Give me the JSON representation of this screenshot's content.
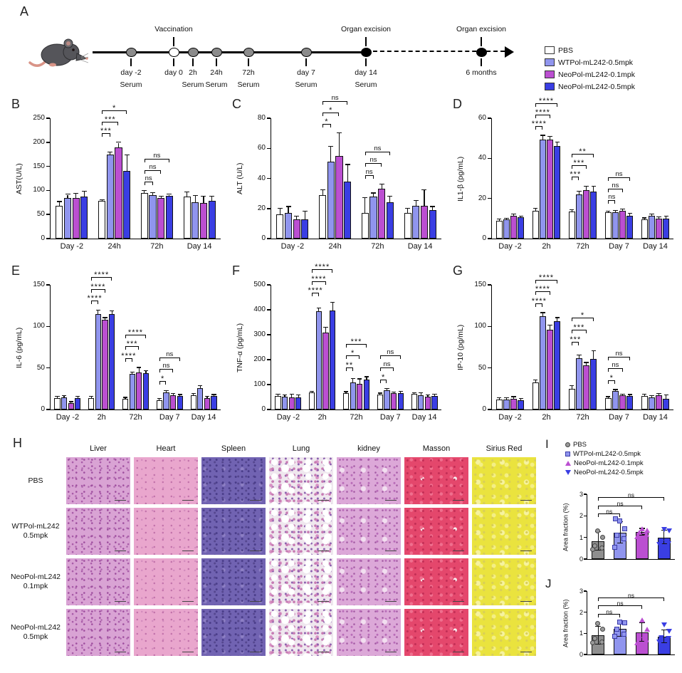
{
  "panels": {
    "A": "A",
    "B": "B",
    "C": "C",
    "D": "D",
    "E": "E",
    "F": "F",
    "G": "G",
    "H": "H",
    "I": "I",
    "J": "J"
  },
  "group_colors": [
    "#ffffff",
    "#9095ee",
    "#bb4fd1",
    "#3a3ee3"
  ],
  "legend_main": {
    "items": [
      {
        "label": "PBS",
        "color": "#ffffff"
      },
      {
        "label": "WTPol-mL242-0.5mpk",
        "color": "#9095ee"
      },
      {
        "label": "NeoPol-mL242-0.1mpk",
        "color": "#bb4fd1"
      },
      {
        "label": "NeoPol-mL242-0.5mpk",
        "color": "#3a3ee3"
      }
    ]
  },
  "timeline": {
    "solid_end_pct": 64,
    "dashed_end_pct": 96.5,
    "points": [
      {
        "pct": 9,
        "type": "gray",
        "above": "",
        "below1": "day -2",
        "below2": "Serum"
      },
      {
        "pct": 19,
        "type": "white",
        "above": "Vaccination",
        "below1": "day 0",
        "below2": ""
      },
      {
        "pct": 23.5,
        "type": "gray",
        "above": "",
        "below1": "2h",
        "below2": "Serum"
      },
      {
        "pct": 29,
        "type": "gray",
        "above": "",
        "below1": "24h",
        "below2": "Serum"
      },
      {
        "pct": 36.5,
        "type": "gray",
        "above": "",
        "below1": "72h",
        "below2": "Serum"
      },
      {
        "pct": 50,
        "type": "gray",
        "above": "",
        "below1": "day 7",
        "below2": "Serum"
      },
      {
        "pct": 64,
        "type": "black",
        "above": "Organ excision",
        "below1": "day 14",
        "below2": "Serum"
      },
      {
        "pct": 91,
        "type": "black",
        "above": "Organ excision",
        "below1": "6 months",
        "below2": ""
      }
    ]
  },
  "chart_data": [
    {
      "kind": "grouped",
      "type": "bar",
      "panel": "B",
      "ylabel": "AST(U/L)",
      "ymax": 250,
      "yticks": [
        0,
        50,
        100,
        150,
        200,
        250
      ],
      "categories": [
        "Day -2",
        "24h",
        "72h",
        "Day 14"
      ],
      "series": [
        {
          "name": "PBS",
          "values": [
            68,
            78,
            95,
            87
          ],
          "errors": [
            8,
            2,
            4,
            9
          ]
        },
        {
          "name": "WTPol-mL242-0.5mpk",
          "values": [
            84,
            174,
            90,
            75
          ],
          "errors": [
            7,
            5,
            5,
            14
          ]
        },
        {
          "name": "NeoPol-mL242-0.1mpk",
          "values": [
            85,
            189,
            85,
            74
          ],
          "errors": [
            8,
            10,
            2,
            13
          ]
        },
        {
          "name": "NeoPol-mL242-0.5mpk",
          "values": [
            88,
            141,
            89,
            79
          ],
          "errors": [
            10,
            32,
            2,
            8
          ]
        }
      ],
      "brackets": {
        "1": [
          "***",
          "***",
          "*"
        ],
        "2": [
          "ns",
          "ns",
          "ns"
        ]
      }
    },
    {
      "kind": "grouped",
      "type": "bar",
      "panel": "C",
      "ylabel": "ALT (U/L)",
      "ymax": 80,
      "yticks": [
        0,
        20,
        40,
        60,
        80
      ],
      "categories": [
        "Day -2",
        "24h",
        "72h",
        "Day 14"
      ],
      "series": [
        {
          "name": "PBS",
          "values": [
            16,
            29,
            17,
            17
          ],
          "errors": [
            4,
            3,
            10,
            3
          ]
        },
        {
          "name": "WTPol-mL242-0.5mpk",
          "values": [
            17,
            51,
            28,
            22
          ],
          "errors": [
            4,
            10,
            2,
            3
          ]
        },
        {
          "name": "NeoPol-mL242-0.1mpk",
          "values": [
            13,
            55,
            33,
            22
          ],
          "errors": [
            1.5,
            15,
            3,
            10
          ]
        },
        {
          "name": "NeoPol-mL242-0.5mpk",
          "values": [
            13,
            38,
            24,
            19
          ],
          "errors": [
            5,
            11,
            4,
            2
          ]
        }
      ],
      "brackets": {
        "1": [
          "*",
          "*",
          "ns"
        ],
        "2": [
          "ns",
          "ns",
          "ns"
        ]
      }
    },
    {
      "kind": "grouped",
      "type": "bar",
      "panel": "D",
      "ylabel": "IL1-β (pg/mL)",
      "ymax": 60,
      "yticks": [
        0,
        20,
        40,
        60
      ],
      "categories": [
        "Day -2",
        "2h",
        "72h",
        "Day 7",
        "Day 14"
      ],
      "series": [
        {
          "name": "PBS",
          "values": [
            9,
            14,
            13.5,
            13,
            9.5
          ],
          "errors": [
            0.5,
            0.8,
            0.8,
            0.6,
            0.6
          ]
        },
        {
          "name": "WTPol-mL242-0.5mpk",
          "values": [
            9.5,
            49.5,
            22,
            13,
            11.5
          ],
          "errors": [
            0.5,
            1.8,
            1.5,
            0.8,
            0.6
          ]
        },
        {
          "name": "NeoPol-mL242-0.1mpk",
          "values": [
            11.5,
            49.5,
            24,
            14,
            10
          ],
          "errors": [
            0.5,
            1.2,
            1.8,
            0.5,
            0.5
          ]
        },
        {
          "name": "NeoPol-mL242-0.5mpk",
          "values": [
            10.5,
            46,
            23.5,
            11.5,
            10
          ],
          "errors": [
            0.5,
            1.8,
            2.5,
            0.8,
            1
          ]
        }
      ],
      "brackets": {
        "1": [
          "****",
          "****",
          "****"
        ],
        "2": [
          "***",
          "***",
          "**"
        ],
        "3": [
          "ns",
          "ns",
          "ns"
        ]
      }
    },
    {
      "kind": "grouped",
      "type": "bar",
      "panel": "E",
      "ylabel": "IL-6 (pg/mL)",
      "ymax": 150,
      "yticks": [
        0,
        50,
        100,
        150
      ],
      "categories": [
        "Day -2",
        "2h",
        "72h",
        "Day 7",
        "Day 14"
      ],
      "series": [
        {
          "name": "PBS",
          "values": [
            14,
            14,
            13,
            11,
            17
          ],
          "errors": [
            1.5,
            1.5,
            1,
            1.5,
            2
          ]
        },
        {
          "name": "WTPol-mL242-0.5mpk",
          "values": [
            15,
            115,
            43,
            21,
            26
          ],
          "errors": [
            1.5,
            4,
            1.5,
            1.5,
            2
          ]
        },
        {
          "name": "NeoPol-mL242-0.1mpk",
          "values": [
            8,
            108,
            45,
            17,
            14
          ],
          "errors": [
            1,
            2,
            5,
            1.5,
            1.5
          ]
        },
        {
          "name": "NeoPol-mL242-0.5mpk",
          "values": [
            14,
            115,
            44,
            16,
            16
          ],
          "errors": [
            1.5,
            3,
            2,
            1.5,
            1.5
          ]
        }
      ],
      "brackets": {
        "1": [
          "****",
          "****",
          "****"
        ],
        "2": [
          "****",
          "***",
          "****"
        ],
        "3": [
          "*",
          "ns",
          "ns"
        ]
      }
    },
    {
      "kind": "grouped",
      "type": "bar",
      "panel": "F",
      "ylabel": "TNF-α (pg/mL)",
      "ymax": 500,
      "yticks": [
        0,
        100,
        200,
        300,
        400,
        500
      ],
      "categories": [
        "Day -2",
        "2h",
        "72h",
        "Day 7",
        "Day 14"
      ],
      "series": [
        {
          "name": "PBS",
          "values": [
            55,
            68,
            65,
            60,
            62
          ],
          "errors": [
            4,
            4,
            5,
            4,
            4
          ]
        },
        {
          "name": "WTPol-mL242-0.5mpk",
          "values": [
            52,
            395,
            110,
            77,
            58
          ],
          "errors": [
            5,
            10,
            12,
            5,
            8
          ]
        },
        {
          "name": "NeoPol-mL242-0.1mpk",
          "values": [
            50,
            308,
            103,
            65,
            52
          ],
          "errors": [
            10,
            20,
            18,
            4,
            4
          ]
        },
        {
          "name": "NeoPol-mL242-0.5mpk",
          "values": [
            50,
            398,
            120,
            67,
            55
          ],
          "errors": [
            6,
            30,
            10,
            5,
            4
          ]
        }
      ],
      "brackets": {
        "1": [
          "****",
          "****",
          "****"
        ],
        "2": [
          "**",
          "*",
          "***"
        ],
        "3": [
          "*",
          "ns",
          "ns"
        ]
      }
    },
    {
      "kind": "grouped",
      "type": "bar",
      "panel": "G",
      "ylabel": "IP-10 (pg/mL)",
      "ymax": 150,
      "yticks": [
        0,
        50,
        100,
        150
      ],
      "categories": [
        "Day -2",
        "2h",
        "72h",
        "Day 7",
        "Day 14"
      ],
      "series": [
        {
          "name": "PBS",
          "values": [
            12,
            33,
            25,
            14,
            16
          ],
          "errors": [
            1.5,
            2,
            3,
            1,
            2
          ]
        },
        {
          "name": "WTPol-mL242-0.5mpk",
          "values": [
            12,
            112,
            62,
            22,
            15
          ],
          "errors": [
            1.5,
            4,
            3,
            1.5,
            1.5
          ]
        },
        {
          "name": "NeoPol-mL242-0.1mpk",
          "values": [
            13,
            96,
            53,
            17,
            17
          ],
          "errors": [
            2,
            5,
            3,
            1,
            1.5
          ]
        },
        {
          "name": "NeoPol-mL242-0.5mpk",
          "values": [
            11,
            106,
            61,
            16,
            13
          ],
          "errors": [
            1.5,
            4,
            9,
            1.5,
            4
          ]
        }
      ],
      "brackets": {
        "1": [
          "****",
          "****",
          "****"
        ],
        "2": [
          "***",
          "***",
          "*"
        ],
        "3": [
          "*",
          "ns",
          "ns"
        ]
      }
    },
    {
      "kind": "area",
      "type": "bar",
      "panel": "I",
      "ylabel": "Area fraction (%)",
      "ymax": 3,
      "yticks": [
        0,
        1,
        2,
        3
      ],
      "bars": [
        {
          "name": "PBS",
          "value": 0.82,
          "error": 0.42,
          "color": "#8f8f8f",
          "marker": "circle",
          "points": [
            0.45,
            0.5,
            0.62,
            1.0,
            1.3
          ]
        },
        {
          "name": "WTPol-mL242-0.5mpk",
          "value": 1.22,
          "error": 0.5,
          "color": "#9095ee",
          "marker": "square",
          "points": [
            0.55,
            0.95,
            1.1,
            1.4,
            1.75,
            1.85
          ]
        },
        {
          "name": "NeoPol-mL242-0.1mpk",
          "value": 1.25,
          "error": 0.15,
          "color": "#bb4fd1",
          "marker": "triangle-up",
          "points": [
            1.05,
            1.15,
            1.25,
            1.32,
            1.4
          ]
        },
        {
          "name": "NeoPol-mL242-0.5mpk",
          "value": 1.0,
          "error": 0.32,
          "color": "#3a3ee3",
          "marker": "triangle-down",
          "points": [
            0.68,
            0.72,
            0.78,
            1.3,
            1.38
          ]
        }
      ],
      "brackets": [
        "ns",
        "ns",
        "ns"
      ]
    },
    {
      "kind": "area",
      "type": "bar",
      "panel": "J",
      "ylabel": "Area fraction (%)",
      "ymax": 3,
      "yticks": [
        0,
        1,
        2,
        3
      ],
      "bars": [
        {
          "name": "PBS",
          "value": 0.9,
          "error": 0.42,
          "color": "#8f8f8f",
          "marker": "circle",
          "points": [
            0.55,
            0.6,
            0.75,
            1.2,
            1.45
          ]
        },
        {
          "name": "WTPol-mL242-0.5mpk",
          "value": 1.2,
          "error": 0.35,
          "color": "#9095ee",
          "marker": "square",
          "points": [
            0.85,
            0.95,
            1.2,
            1.5,
            1.55
          ]
        },
        {
          "name": "NeoPol-mL242-0.1mpk",
          "value": 1.05,
          "error": 0.45,
          "color": "#bb4fd1",
          "marker": "triangle-up",
          "points": [
            0.55,
            0.7,
            0.9,
            1.2,
            1.65
          ]
        },
        {
          "name": "NeoPol-mL242-0.5mpk",
          "value": 0.85,
          "error": 0.3,
          "color": "#3a3ee3",
          "marker": "triangle-down",
          "points": [
            0.6,
            0.75,
            0.8,
            1.1,
            1.4
          ]
        }
      ],
      "brackets": [
        "ns",
        "ns",
        "ns"
      ]
    }
  ],
  "legend_area": {
    "items": [
      {
        "label": "PBS",
        "marker": "circle"
      },
      {
        "label": "WTPol-mL242-0.5mpk",
        "marker": "square"
      },
      {
        "label": "NeoPol-mL242-0.1mpk",
        "marker": "triangle-up"
      },
      {
        "label": "NeoPol-mL242-0.5mpk",
        "marker": "triangle-down"
      }
    ]
  },
  "histology": {
    "columns": [
      "Liver",
      "Heart",
      "Spleen",
      "Lung",
      "kidney",
      "Masson",
      "Sirius Red"
    ],
    "rows": [
      [
        "PBS",
        ""
      ],
      [
        "WTPol-mL242",
        "0.5mpk"
      ],
      [
        "NeoPol-mL242",
        "0.1mpk"
      ],
      [
        "NeoPol-mL242",
        "0.5mpk"
      ]
    ]
  }
}
